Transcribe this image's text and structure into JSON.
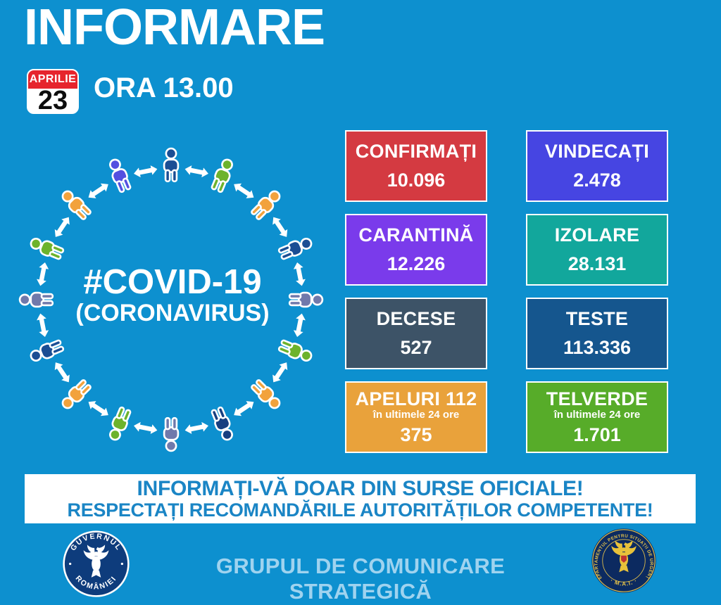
{
  "header": {
    "title": "INFORMARE",
    "date_month": "APRILIE",
    "date_day": "23",
    "time_label": "ORA 13.00"
  },
  "diagram": {
    "hashtag": "#COVID-19",
    "subtitle": "(CORONAVIRUS)",
    "arrow_color": "#ffffff",
    "person_colors": [
      "#1b4e94",
      "#6db32c",
      "#f2a23c",
      "#1b4e94",
      "#7079ab",
      "#6db32c",
      "#f2a23c",
      "#173f80",
      "#7079ab",
      "#6db32c",
      "#f2a23c",
      "#1b4e94",
      "#7079ab",
      "#6db32c",
      "#f2a23c",
      "#544fe0"
    ]
  },
  "stats": [
    {
      "label": "CONFIRMAȚI",
      "value": "10.096",
      "color": "#d43a41"
    },
    {
      "label": "VINDECAȚI",
      "value": "2.478",
      "color": "#4645e2"
    },
    {
      "label": "CARANTINĂ",
      "value": "12.226",
      "color": "#7a3beb"
    },
    {
      "label": "IZOLARE",
      "value": "28.131",
      "color": "#12a79c"
    },
    {
      "label": "DECESE",
      "value": "527",
      "color": "#3d5367"
    },
    {
      "label": "TESTE",
      "value": "113.336",
      "color": "#15568e"
    },
    {
      "label": "APELURI 112",
      "sublabel": "în ultimele 24 ore",
      "value": "375",
      "color": "#e9a23b"
    },
    {
      "label": "TELVERDE",
      "sublabel": "în ultimele 24 ore",
      "value": "1.701",
      "color": "#57ac29"
    }
  ],
  "banner": {
    "line1": "INFORMAȚI-VĂ DOAR DIN SURSE OFICIALE!",
    "line2": "RESPECTAȚI RECOMANDĂRILE AUTORITĂȚILOR COMPETENTE!",
    "text_color": "#1a85c5"
  },
  "footer": {
    "text": "GRUPUL DE COMUNICARE STRATEGICĂ",
    "gov_logo": {
      "arc_top": "GUVERNUL",
      "arc_bottom": "ROMÂNIEI"
    },
    "dsu_logo": {
      "arc_top": "DEPARTAMENTUL PENTRU SITUAȚII DE URGENȚĂ",
      "arc_bottom": "· M.A.I. ·"
    }
  },
  "colors": {
    "background": "#0d90cf",
    "badge_red": "#e6242c",
    "footer_text": "#9fd3ef",
    "gov_navy": "#0e3c7c",
    "dsu_navy": "#0c2a60",
    "dsu_gold": "#e3c04a"
  }
}
